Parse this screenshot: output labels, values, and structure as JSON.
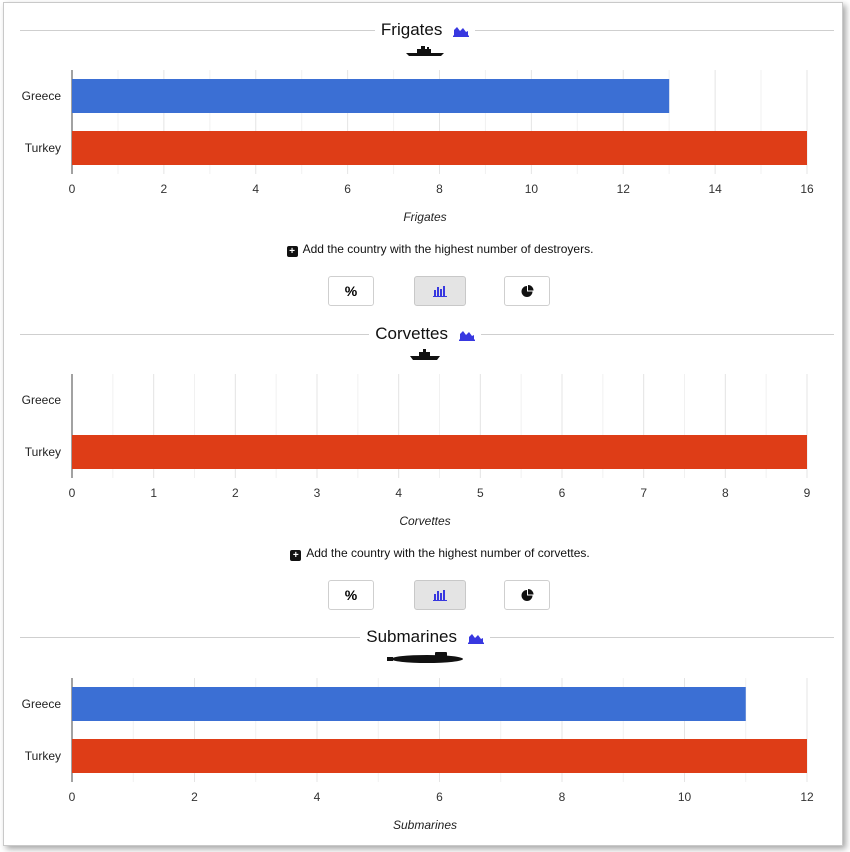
{
  "colors": {
    "greece": "#3b6fd4",
    "turkey": "#de3d17",
    "grid": "#e4e4e4",
    "icon_blue": "#3838e0"
  },
  "sections": [
    {
      "title": "Frigates",
      "axis_title": "Frigates",
      "add_text": "Add the country with the highest number of destroyers.",
      "percent_label": "%"
    },
    {
      "title": "Corvettes",
      "axis_title": "Corvettes",
      "add_text": "Add the country with the highest number of corvettes.",
      "percent_label": "%"
    },
    {
      "title": "Submarines",
      "axis_title": "Submarines",
      "add_text": "",
      "percent_label": "%"
    }
  ],
  "chart_data": [
    {
      "type": "bar",
      "orientation": "horizontal",
      "title": "Frigates",
      "xlabel": "Frigates",
      "categories": [
        "Greece",
        "Turkey"
      ],
      "values": [
        13,
        16
      ],
      "xlim": [
        0,
        16
      ],
      "ticks": [
        0,
        2,
        4,
        6,
        8,
        10,
        12,
        14,
        16
      ],
      "grid": true
    },
    {
      "type": "bar",
      "orientation": "horizontal",
      "title": "Corvettes",
      "xlabel": "Corvettes",
      "categories": [
        "Greece",
        "Turkey"
      ],
      "values": [
        0,
        9
      ],
      "xlim": [
        0,
        9
      ],
      "ticks": [
        0,
        1,
        2,
        3,
        4,
        5,
        6,
        7,
        8,
        9
      ],
      "grid": true
    },
    {
      "type": "bar",
      "orientation": "horizontal",
      "title": "Submarines",
      "xlabel": "Submarines",
      "categories": [
        "Greece",
        "Turkey"
      ],
      "values": [
        11,
        12
      ],
      "xlim": [
        0,
        12
      ],
      "ticks": [
        0,
        2,
        4,
        6,
        8,
        10,
        12
      ],
      "grid": true
    }
  ]
}
